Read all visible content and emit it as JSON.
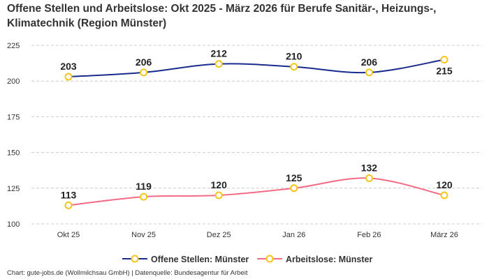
{
  "title": "Offene Stellen und Arbeitslose: Okt 2025 - März 2026 für Berufe Sanitär-, Heizungs-, Klimatechnik (Region Münster)",
  "footer": "Chart: gute-jobs.de (Wollmilchsau GmbH) | Datenquelle: Bundesagentur für Arbeit",
  "chart_data": {
    "type": "line",
    "categories": [
      "Okt 25",
      "Nov 25",
      "Dez 25",
      "Jan 26",
      "Feb 26",
      "März 26"
    ],
    "ylim": [
      100,
      225
    ],
    "yticks": [
      100,
      125,
      150,
      175,
      200,
      225
    ],
    "grid": true,
    "legend_position": "bottom",
    "marker_color": "#f5c518",
    "series": [
      {
        "name": "Offene Stellen: Münster",
        "color": "#1a2b8c",
        "values": [
          203,
          206,
          212,
          210,
          206,
          215
        ]
      },
      {
        "name": "Arbeitslose: Münster",
        "color": "#f26b84",
        "values": [
          113,
          119,
          120,
          125,
          132,
          120
        ]
      }
    ]
  }
}
